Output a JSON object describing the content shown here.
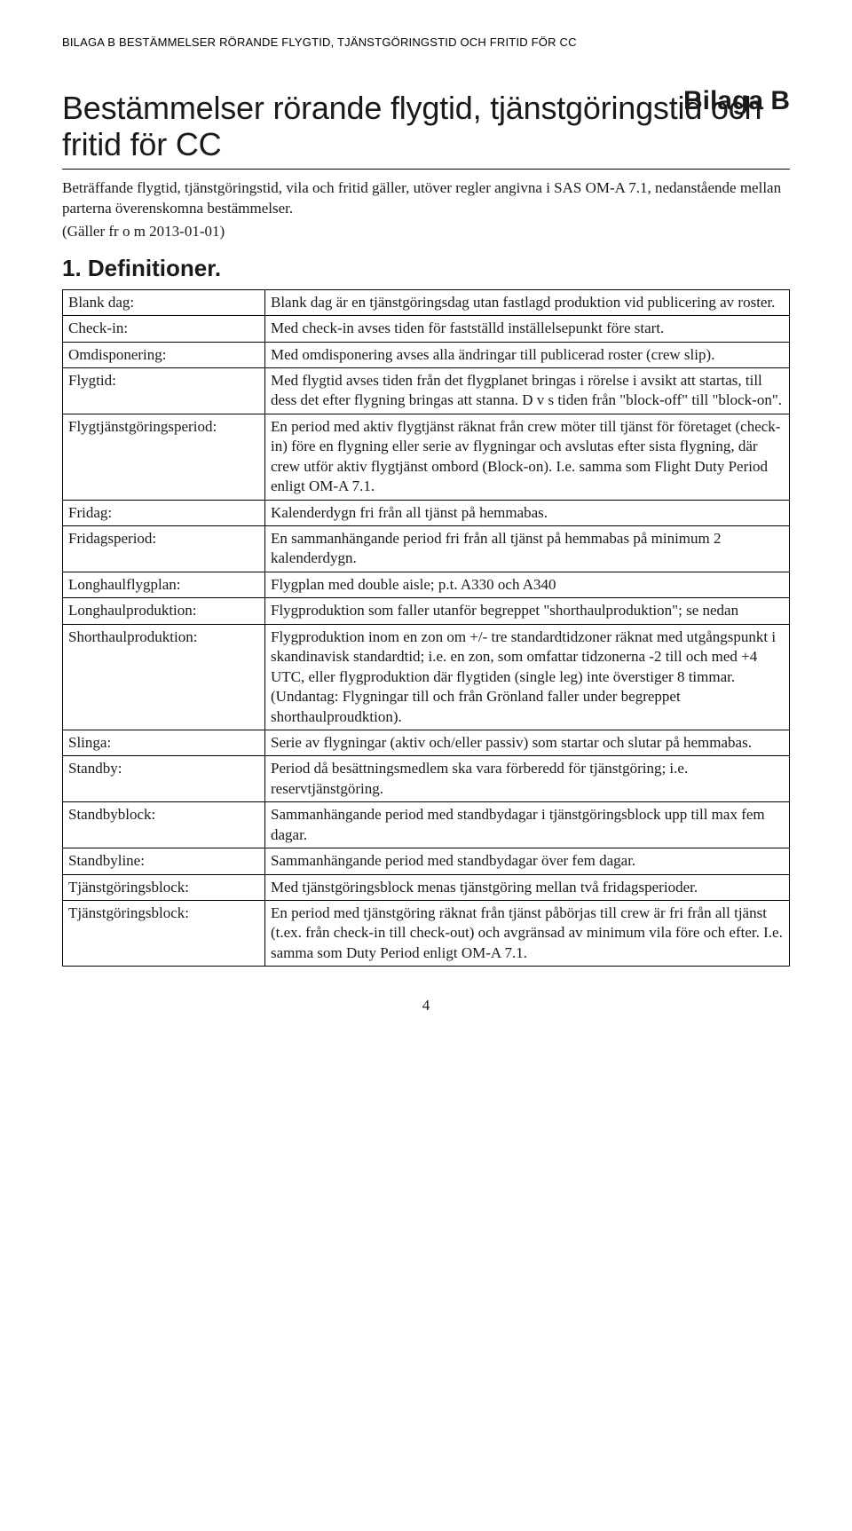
{
  "running_head": "BILAGA B BESTÄMMELSER RÖRANDE FLYGTID, TJÄNSTGÖRINGSTID OCH FRITID FÖR CC",
  "bilaga_label": "Bilaga B",
  "title": "Bestämmelser rörande flygtid, tjänstgöringstid och fritid för CC",
  "intro": "Beträffande flygtid, tjänstgöringstid, vila och fritid gäller, utöver regler angivna i SAS OM-A 7.1, nedanstående mellan parterna överenskomna bestämmelser.",
  "galler": "(Gäller fr o m 2013-01-01)",
  "section_heading": "1. Definitioner.",
  "definitions": [
    {
      "term": "Blank dag:",
      "desc": "Blank dag är en tjänstgöringsdag utan fastlagd produktion vid publicering av roster."
    },
    {
      "term": "Check-in:",
      "desc": "Med check-in avses tiden för fastställd inställelsepunkt före start."
    },
    {
      "term": "Omdisponering:",
      "desc": "Med omdisponering avses alla ändringar till publicerad roster (crew slip)."
    },
    {
      "term": "Flygtid:",
      "desc": "Med flygtid avses tiden från det flygplanet bringas i rörelse i avsikt att startas, till dess det efter flygning bringas att stanna. D v s tiden från \"block-off\" till \"block-on\"."
    },
    {
      "term": "Flygtjänstgöringsperiod:",
      "desc": "En period med aktiv flygtjänst räknat från crew möter till tjänst för företaget (check-in) före en flygning eller serie av flygningar och avslutas efter sista flygning, där crew utför aktiv flygtjänst ombord (Block-on). I.e. samma som Flight Duty Period enligt OM-A 7.1."
    },
    {
      "term": "Fridag:",
      "desc": "Kalenderdygn fri från all tjänst på hemmabas."
    },
    {
      "term": "Fridagsperiod:",
      "desc": "En sammanhängande period fri från all tjänst på hemmabas på minimum 2 kalenderdygn."
    },
    {
      "term": "Longhaulflygplan:",
      "desc": "Flygplan med double aisle; p.t. A330 och A340"
    },
    {
      "term": "Longhaulproduktion:",
      "desc": "Flygproduktion som faller utanför begreppet \"shorthaulproduktion\"; se nedan"
    },
    {
      "term": "Shorthaulproduktion:",
      "desc": "Flygproduktion inom en zon om +/- tre standardtidzoner räknat med utgångspunkt i skandinavisk standardtid; i.e. en zon, som omfattar tidzonerna -2 till och med +4 UTC, eller flygproduktion där flygtiden (single leg) inte överstiger 8 timmar. (Undantag: Flygningar till och från Grönland faller under begreppet shorthaulproudktion)."
    },
    {
      "term": "Slinga:",
      "desc": "Serie av flygningar (aktiv och/eller passiv) som startar och slutar på hemmabas."
    },
    {
      "term": "Standby:",
      "desc": "Period då besättningsmedlem ska vara förberedd för tjänstgöring; i.e. reservtjänstgöring."
    },
    {
      "term": "Standbyblock:",
      "desc": "Sammanhängande period med standbydagar i tjänstgöringsblock upp till max fem dagar."
    },
    {
      "term": "Standbyline:",
      "desc": "Sammanhängande period med standbydagar över fem dagar."
    },
    {
      "term": "Tjänstgöringsblock:",
      "desc": "Med tjänstgöringsblock menas tjänstgöring mellan två fridagsperioder."
    },
    {
      "term": "Tjänstgöringsblock:",
      "desc": "En period med tjänstgöring räknat från tjänst påbörjas till crew är fri från all tjänst (t.ex. från check-in till check-out) och avgränsad av minimum vila före och efter. I.e. samma som Duty Period enligt OM-A 7.1."
    }
  ],
  "page_number": "4"
}
